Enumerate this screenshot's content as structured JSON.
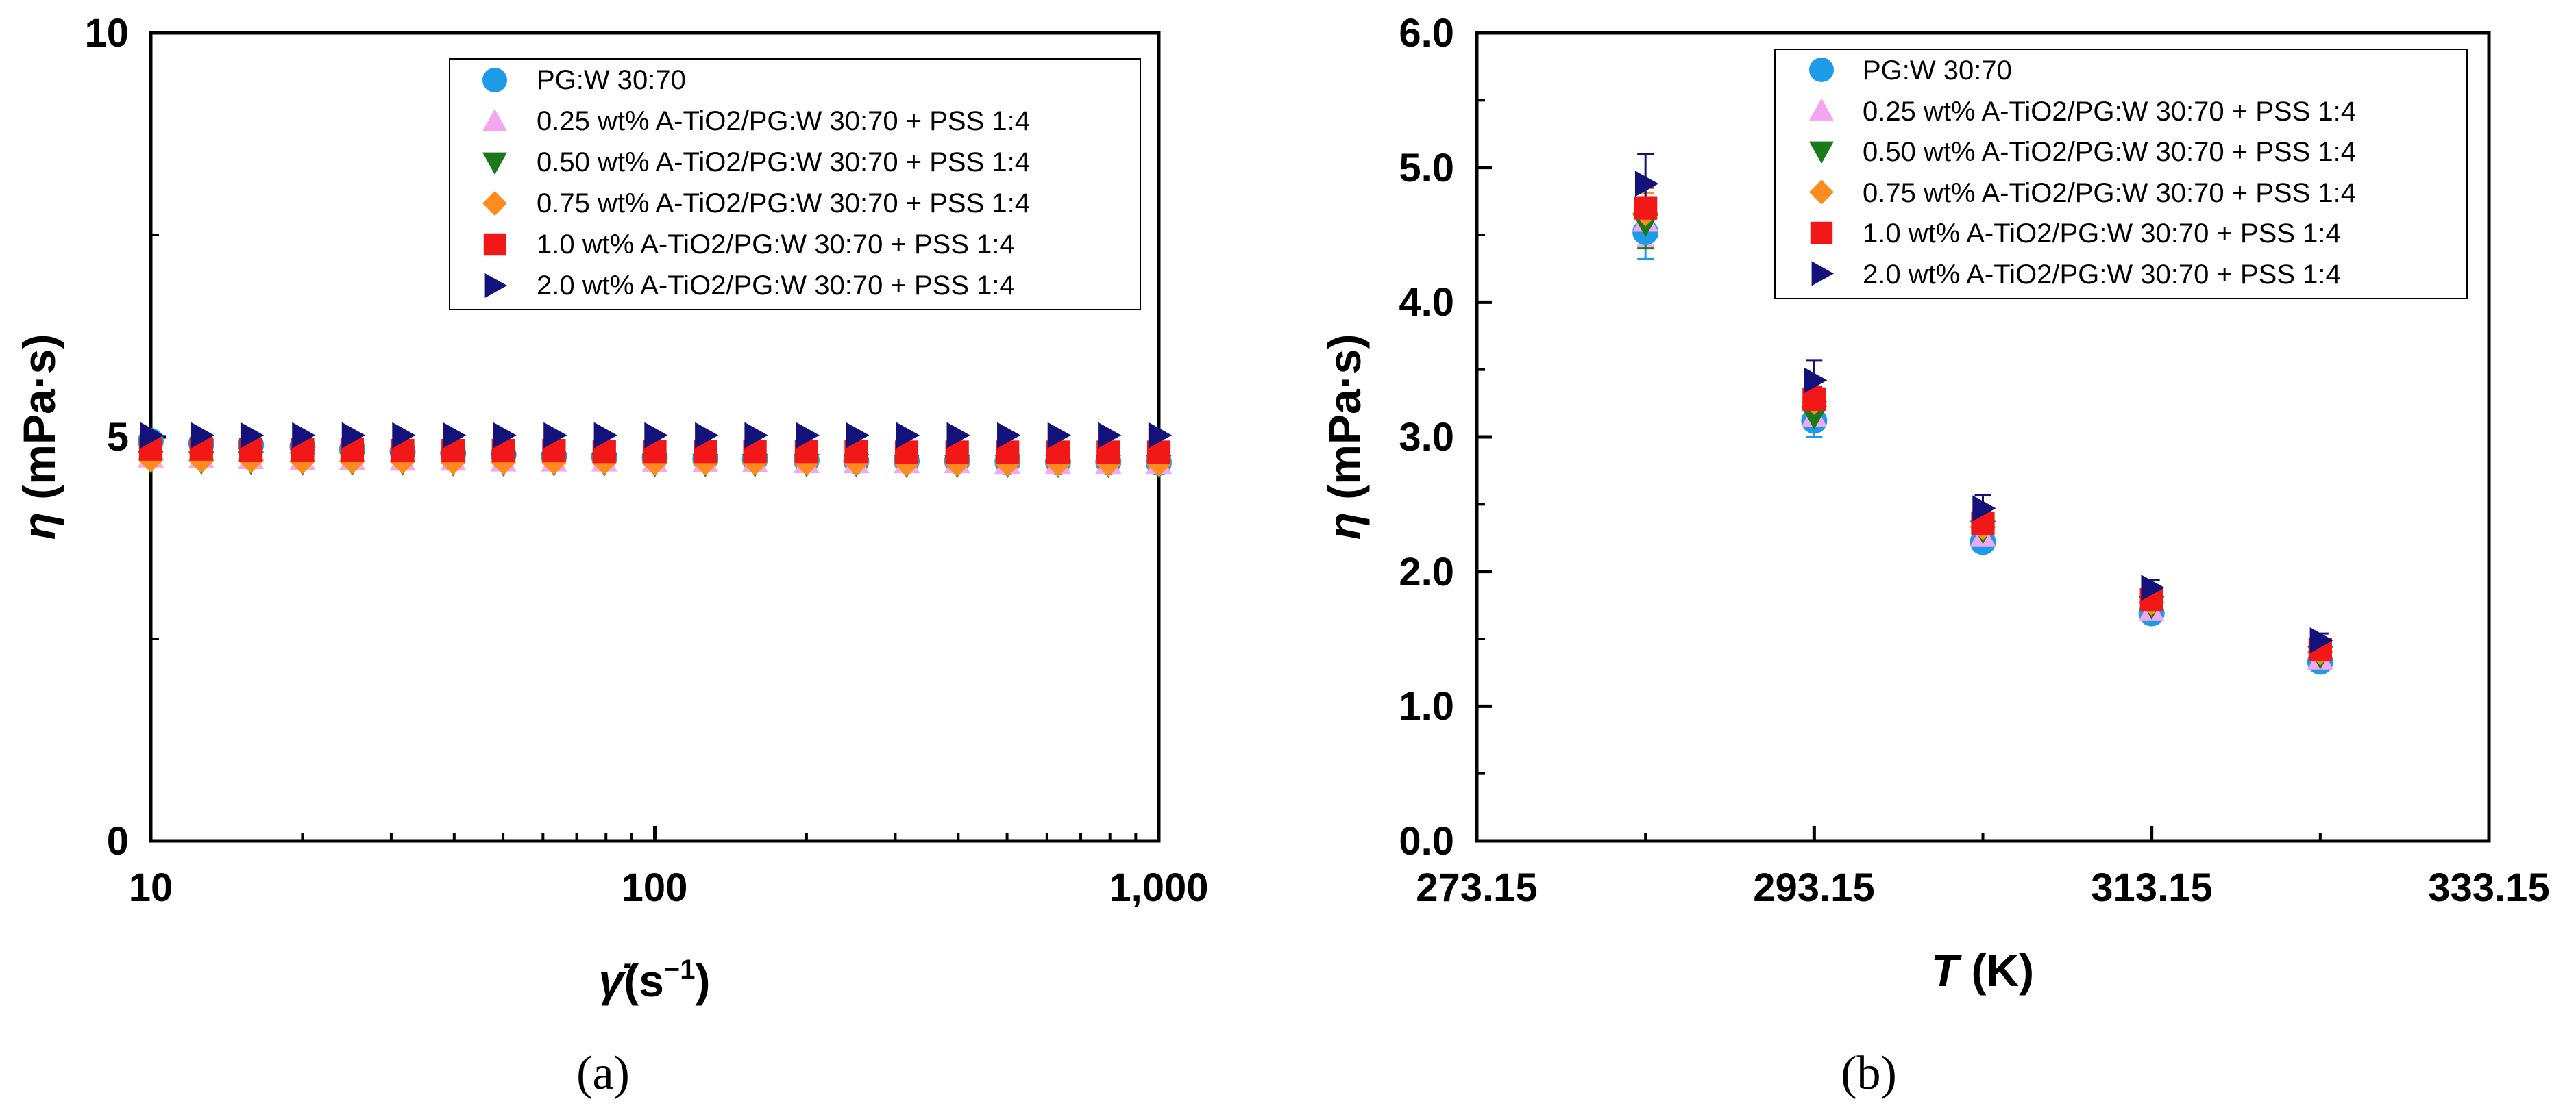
{
  "chart_data": [
    {
      "id": "a",
      "type": "scatter",
      "caption": "(a)",
      "xlabel_symbol": "γ̇",
      "xlabel_unit": "(s",
      "xlabel_exp": "−1",
      "xlabel_close": ")",
      "ylabel_symbol": "η",
      "ylabel_unit": " (mPa·s)",
      "xscale": "log",
      "xlim": [
        10,
        1000
      ],
      "ylim": [
        0,
        10
      ],
      "xticks": [
        10,
        100,
        1000
      ],
      "xtick_labels": [
        "10",
        "100",
        "1,000"
      ],
      "yticks": [
        0,
        5,
        10
      ],
      "ytick_labels": [
        "0",
        "5",
        "10"
      ],
      "legend_position": "top-right",
      "series": [
        {
          "name": "PG:W 30:70",
          "marker": "circle",
          "color": "#1E9BE8",
          "x": [
            10,
            12.6,
            15.8,
            20,
            25.1,
            31.6,
            39.8,
            50.1,
            63.1,
            79.4,
            100,
            126,
            158,
            200,
            251,
            316,
            398,
            501,
            631,
            794,
            1000
          ],
          "y": [
            4.95,
            4.92,
            4.9,
            4.88,
            4.85,
            4.82,
            4.8,
            4.78,
            4.76,
            4.75,
            4.74,
            4.73,
            4.72,
            4.71,
            4.7,
            4.7,
            4.7,
            4.69,
            4.69,
            4.69,
            4.68
          ]
        },
        {
          "name": "0.25 wt% A-TiO2/PG:W 30:70 + PSS 1:4",
          "marker": "triangle-up",
          "color": "#F4A6F0",
          "x": [
            10,
            12.6,
            15.8,
            20,
            25.1,
            31.6,
            39.8,
            50.1,
            63.1,
            79.4,
            100,
            126,
            158,
            200,
            251,
            316,
            398,
            501,
            631,
            794,
            1000
          ],
          "y": [
            4.75,
            4.74,
            4.73,
            4.72,
            4.72,
            4.71,
            4.71,
            4.7,
            4.7,
            4.7,
            4.69,
            4.69,
            4.69,
            4.68,
            4.68,
            4.68,
            4.68,
            4.67,
            4.67,
            4.67,
            4.67
          ]
        },
        {
          "name": "0.50 wt% A-TiO2/PG:W 30:70 + PSS 1:4",
          "marker": "triangle-down",
          "color": "#1A7A1A",
          "x": [
            10,
            12.6,
            15.8,
            20,
            25.1,
            31.6,
            39.8,
            50.1,
            63.1,
            79.4,
            100,
            126,
            158,
            200,
            251,
            316,
            398,
            501,
            631,
            794,
            1000
          ],
          "y": [
            4.7,
            4.69,
            4.69,
            4.68,
            4.68,
            4.68,
            4.67,
            4.67,
            4.67,
            4.67,
            4.66,
            4.66,
            4.66,
            4.66,
            4.66,
            4.65,
            4.65,
            4.65,
            4.65,
            4.65,
            4.65
          ]
        },
        {
          "name": "0.75 wt% A-TiO2/PG:W 30:70 + PSS 1:4",
          "marker": "diamond",
          "color": "#FF8A1E",
          "x": [
            10,
            12.6,
            15.8,
            20,
            25.1,
            31.6,
            39.8,
            50.1,
            63.1,
            79.4,
            100,
            126,
            158,
            200,
            251,
            316,
            398,
            501,
            631,
            794,
            1000
          ],
          "y": [
            4.72,
            4.71,
            4.71,
            4.7,
            4.7,
            4.7,
            4.69,
            4.69,
            4.69,
            4.69,
            4.68,
            4.68,
            4.68,
            4.68,
            4.68,
            4.67,
            4.67,
            4.67,
            4.67,
            4.67,
            4.67
          ]
        },
        {
          "name": "1.0 wt% A-TiO2/PG:W 30:70 + PSS 1:4",
          "marker": "square",
          "color": "#F21818",
          "x": [
            10,
            12.6,
            15.8,
            20,
            25.1,
            31.6,
            39.8,
            50.1,
            63.1,
            79.4,
            100,
            126,
            158,
            200,
            251,
            316,
            398,
            501,
            631,
            794,
            1000
          ],
          "y": [
            4.85,
            4.85,
            4.84,
            4.84,
            4.84,
            4.83,
            4.83,
            4.83,
            4.83,
            4.82,
            4.82,
            4.82,
            4.82,
            4.82,
            4.82,
            4.81,
            4.81,
            4.81,
            4.81,
            4.81,
            4.81
          ]
        },
        {
          "name": "2.0 wt% A-TiO2/PG:W 30:70 + PSS 1:4",
          "marker": "triangle-right",
          "color": "#12127A",
          "x": [
            10,
            12.6,
            15.8,
            20,
            25.1,
            31.6,
            39.8,
            50.1,
            63.1,
            79.4,
            100,
            126,
            158,
            200,
            251,
            316,
            398,
            501,
            631,
            794,
            1000
          ],
          "y": [
            5.02,
            5.02,
            5.02,
            5.02,
            5.02,
            5.02,
            5.02,
            5.02,
            5.02,
            5.02,
            5.02,
            5.02,
            5.02,
            5.02,
            5.02,
            5.02,
            5.02,
            5.02,
            5.02,
            5.02,
            5.02
          ]
        }
      ]
    },
    {
      "id": "b",
      "type": "scatter",
      "caption": "(b)",
      "xlabel_symbol": "T",
      "xlabel_unit": " (K)",
      "ylabel_symbol": "η",
      "ylabel_unit": " (mPa·s)",
      "xscale": "linear",
      "xlim": [
        273.15,
        333.15
      ],
      "ylim": [
        0,
        6
      ],
      "xticks": [
        273.15,
        293.15,
        313.15,
        333.15
      ],
      "xtick_labels": [
        "273.15",
        "293.15",
        "313.15",
        "333.15"
      ],
      "yticks": [
        0,
        1,
        2,
        3,
        4,
        5,
        6
      ],
      "ytick_labels": [
        "0.0",
        "1.0",
        "2.0",
        "3.0",
        "4.0",
        "5.0",
        "6.0"
      ],
      "legend_position": "top-left",
      "series": [
        {
          "name": "PG:W 30:70",
          "marker": "circle",
          "color": "#1E9BE8",
          "x": [
            283.15,
            293.15,
            303.15,
            313.15,
            323.15
          ],
          "y": [
            4.52,
            3.12,
            2.22,
            1.69,
            1.33
          ],
          "err": [
            0.2,
            0.12,
            0.07,
            0.05,
            0.04
          ]
        },
        {
          "name": "0.25 wt% A-TiO2/PG:W 30:70 + PSS 1:4",
          "marker": "triangle-up",
          "color": "#F4A6F0",
          "x": [
            283.15,
            293.15,
            303.15,
            313.15,
            323.15
          ],
          "y": [
            4.6,
            3.15,
            2.26,
            1.71,
            1.35
          ],
          "err": [
            0.18,
            0.1,
            0.06,
            0.05,
            0.04
          ]
        },
        {
          "name": "0.50 wt% A-TiO2/PG:W 30:70 + PSS 1:4",
          "marker": "triangle-down",
          "color": "#1A7A1A",
          "x": [
            283.15,
            293.15,
            303.15,
            313.15,
            323.15
          ],
          "y": [
            4.58,
            3.15,
            2.3,
            1.74,
            1.37
          ],
          "err": [
            0.18,
            0.1,
            0.06,
            0.05,
            0.04
          ]
        },
        {
          "name": "0.75 wt% A-TiO2/PG:W 30:70 + PSS 1:4",
          "marker": "diamond",
          "color": "#FF8A1E",
          "x": [
            283.15,
            293.15,
            303.15,
            313.15,
            323.15
          ],
          "y": [
            4.66,
            3.26,
            2.33,
            1.77,
            1.4
          ],
          "err": [
            0.15,
            0.09,
            0.06,
            0.05,
            0.04
          ]
        },
        {
          "name": "1.0 wt% A-TiO2/PG:W 30:70 + PSS 1:4",
          "marker": "square",
          "color": "#F21818",
          "x": [
            283.15,
            293.15,
            303.15,
            313.15,
            323.15
          ],
          "y": [
            4.7,
            3.28,
            2.36,
            1.79,
            1.42
          ],
          "err": [
            0.15,
            0.09,
            0.06,
            0.05,
            0.04
          ]
        },
        {
          "name": "2.0 wt% A-TiO2/PG:W 30:70 + PSS 1:4",
          "marker": "triangle-right",
          "color": "#12127A",
          "x": [
            283.15,
            293.15,
            303.15,
            313.15,
            323.15
          ],
          "y": [
            4.88,
            3.42,
            2.47,
            1.88,
            1.49
          ],
          "err": [
            0.22,
            0.15,
            0.1,
            0.06,
            0.05
          ]
        }
      ]
    }
  ]
}
